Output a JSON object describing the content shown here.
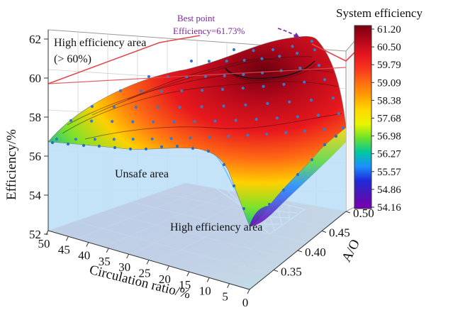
{
  "chart_data": {
    "type": "surface3d",
    "zlabel": "Efficiency/%",
    "xlabel": "Circulation ratio/%",
    "ylabel": "A/O",
    "z_ticks": [
      "62",
      "60",
      "58",
      "56",
      "54",
      "52"
    ],
    "x_ticks": [
      "50",
      "45",
      "40",
      "35",
      "30",
      "25",
      "20",
      "15",
      "10",
      "5",
      "0"
    ],
    "y_ticks": [
      "0.35",
      "0.40",
      "0.45",
      "0.50"
    ],
    "xlim": [
      0,
      50
    ],
    "ylim": [
      0.3,
      0.5
    ],
    "zlim": [
      52,
      62
    ],
    "colorbar": {
      "title": "System efficiency",
      "ticks": [
        "61.20",
        "60.50",
        "59.79",
        "59.09",
        "58.38",
        "57.68",
        "56.98",
        "56.27",
        "55.57",
        "54.86",
        "54.16"
      ],
      "colors": [
        "#7a0010",
        "#b0081a",
        "#e3141e",
        "#f7331d",
        "#ff6a14",
        "#ffa000",
        "#ffd800",
        "#e8f500",
        "#6ae12c",
        "#00c8a0",
        "#1b90ff",
        "#1f2bd8",
        "#4b14b8",
        "#7a00b0"
      ]
    },
    "annotations": {
      "high_area_line1": "High efficiency area",
      "high_area_line2": "(> 60%)",
      "best_line1": "Best point",
      "best_line2": "Efficiency=61.73%",
      "unsafe": "Unsafe area",
      "high_area_floor": "High efficiency area"
    },
    "best_point": {
      "x": 3,
      "y": 0.48,
      "z": 61.73
    },
    "high_threshold": 60,
    "grid": true,
    "colors": {
      "unsafe_fill": "#bfe0f7",
      "threshold_line": "#e0484f",
      "best_annotation": "#7a2a98"
    }
  }
}
